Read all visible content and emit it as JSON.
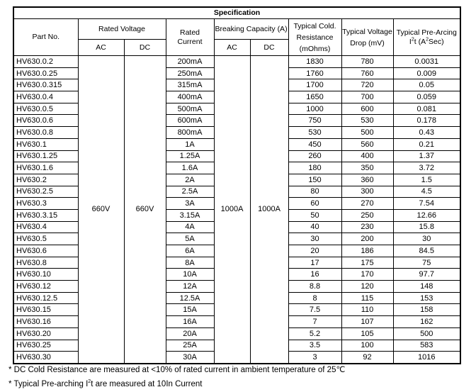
{
  "title": "Specification",
  "headers": {
    "part_no": "Part No.",
    "rated_voltage": "Rated Voltage",
    "ac": "AC",
    "dc": "DC",
    "rated_current": "Rated Current",
    "breaking_capacity": "Breaking Capacity (A)",
    "cold_resistance": "Typical Cold. Resistance (mOhms)",
    "voltage_drop": "Typical Voltage Drop (mV)",
    "pre_arcing": "Typical Pre-Arcing I2t (A2Sec)"
  },
  "shared": {
    "voltage_ac": "660V",
    "voltage_dc": "660V",
    "breaking_ac": "1000A",
    "breaking_dc": "1000A"
  },
  "rows": [
    [
      "HV630.0.2",
      "200mA",
      "1830",
      "780",
      "0.0031"
    ],
    [
      "HV630.0.25",
      "250mA",
      "1760",
      "760",
      "0.009"
    ],
    [
      "HV630.0.315",
      "315mA",
      "1700",
      "720",
      "0.05"
    ],
    [
      "HV630.0.4",
      "400mA",
      "1650",
      "700",
      "0.059"
    ],
    [
      "HV630.0.5",
      "500mA",
      "1000",
      "600",
      "0.081"
    ],
    [
      "HV630.0.6",
      "600mA",
      "750",
      "530",
      "0.178"
    ],
    [
      "HV630.0.8",
      "800mA",
      "530",
      "500",
      "0.43"
    ],
    [
      "HV630.1",
      "1A",
      "450",
      "560",
      "0.21"
    ],
    [
      "HV630.1.25",
      "1.25A",
      "260",
      "400",
      "1.37"
    ],
    [
      "HV630.1.6",
      "1.6A",
      "180",
      "350",
      "3.72"
    ],
    [
      "HV630.2",
      "2A",
      "150",
      "360",
      "1.5"
    ],
    [
      "HV630.2.5",
      "2.5A",
      "80",
      "300",
      "4.5"
    ],
    [
      "HV630.3",
      "3A",
      "60",
      "270",
      "7.54"
    ],
    [
      "HV630.3.15",
      "3.15A",
      "50",
      "250",
      "12.66"
    ],
    [
      "HV630.4",
      "4A",
      "40",
      "230",
      "15.8"
    ],
    [
      "HV630.5",
      "5A",
      "30",
      "200",
      "30"
    ],
    [
      "HV630.6",
      "6A",
      "20",
      "186",
      "84.5"
    ],
    [
      "HV630.8",
      "8A",
      "17",
      "175",
      "75"
    ],
    [
      "HV630.10",
      "10A",
      "16",
      "170",
      "97.7"
    ],
    [
      "HV630.12",
      "12A",
      "8.8",
      "120",
      "148"
    ],
    [
      "HV630.12.5",
      "12.5A",
      "8",
      "115",
      "153"
    ],
    [
      "HV630.15",
      "15A",
      "7.5",
      "110",
      "158"
    ],
    [
      "HV630.16",
      "16A",
      "7",
      "107",
      "162"
    ],
    [
      "HV630.20",
      "20A",
      "5.2",
      "105",
      "500"
    ],
    [
      "HV630.25",
      "25A",
      "3.5",
      "100",
      "583"
    ],
    [
      "HV630.30",
      "30A",
      "3",
      "92",
      "1016"
    ]
  ],
  "notes": [
    "* DC Cold Resistance are measured at <10% of rated current in ambient temperature of 25℃",
    "* Typical Pre-arching I2t are measured at 10In Current"
  ]
}
